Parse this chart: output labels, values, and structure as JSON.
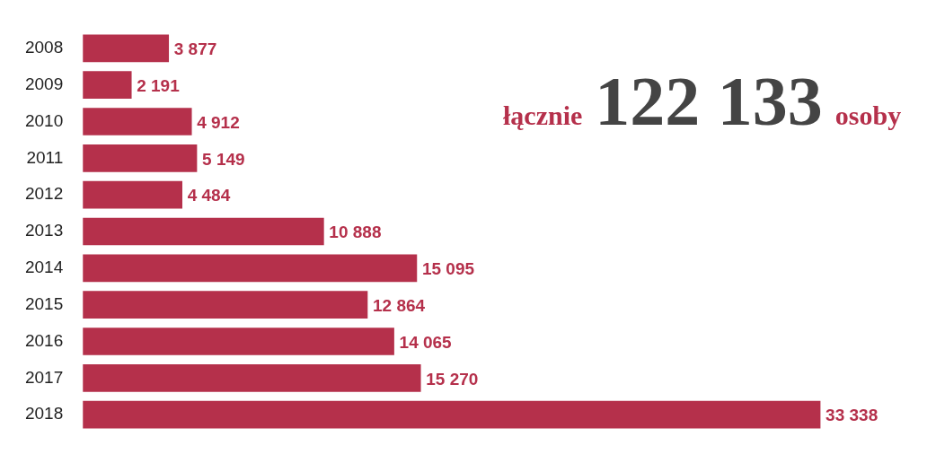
{
  "chart_data": {
    "type": "bar",
    "orientation": "horizontal",
    "categories": [
      "2008",
      "2009",
      "2010",
      "2011",
      "2012",
      "2013",
      "2014",
      "2015",
      "2016",
      "2017",
      "2018"
    ],
    "values": [
      3877,
      2191,
      4912,
      5149,
      4484,
      10888,
      15095,
      12864,
      14065,
      15270,
      33338
    ],
    "value_labels": [
      "3 877",
      "2 191",
      "4 912",
      "5 149",
      "4 484",
      "10 888",
      "15 095",
      "12 864",
      "14 065",
      "15 270",
      "33 338"
    ],
    "color": "#b5304b",
    "legend": false,
    "tick_labels": "y",
    "annotations": [
      "łącznie",
      "122 133",
      "osoby"
    ]
  }
}
